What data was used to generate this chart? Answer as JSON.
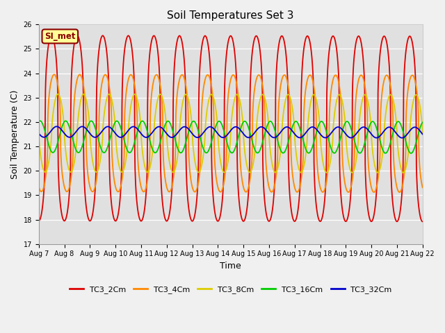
{
  "title": "Soil Temperatures Set 3",
  "xlabel": "Time",
  "ylabel": "Soil Temperature (C)",
  "ylim": [
    17.0,
    26.0
  ],
  "yticks": [
    17.0,
    18.0,
    19.0,
    20.0,
    21.0,
    22.0,
    23.0,
    24.0,
    25.0,
    26.0
  ],
  "xtick_labels": [
    "Aug 7",
    "Aug 8",
    "Aug 9",
    "Aug 10",
    "Aug 11",
    "Aug 12",
    "Aug 13",
    "Aug 14",
    "Aug 15",
    "Aug 16",
    "Aug 17",
    "Aug 18",
    "Aug 19",
    "Aug 20",
    "Aug 21",
    "Aug 22"
  ],
  "annotation_text": "SI_met",
  "bg_color_inner": "#e0e0e0",
  "bg_color_outer": "#f0f0f0",
  "series": [
    {
      "label": "TC3_2Cm",
      "color": "#dd0000",
      "mean": 21.75,
      "amplitude": 3.8,
      "phase_shift": 0.0,
      "peak_power": 3.0
    },
    {
      "label": "TC3_4Cm",
      "color": "#ff8800",
      "mean": 21.55,
      "amplitude": 2.4,
      "phase_shift": 0.1,
      "peak_power": 2.5
    },
    {
      "label": "TC3_8Cm",
      "color": "#ddcc00",
      "mean": 21.55,
      "amplitude": 1.6,
      "phase_shift": 0.25,
      "peak_power": 1.5
    },
    {
      "label": "TC3_16Cm",
      "color": "#00cc00",
      "mean": 21.4,
      "amplitude": 0.65,
      "phase_shift": 0.55,
      "peak_power": 1.0
    },
    {
      "label": "TC3_32Cm",
      "color": "#0000cc",
      "mean": 21.6,
      "amplitude": 0.22,
      "phase_shift": 1.2,
      "peak_power": 1.0
    }
  ],
  "n_days": 15,
  "samples_per_day": 96,
  "legend_colors": [
    "#dd0000",
    "#ff8800",
    "#ddcc00",
    "#00cc00",
    "#0000cc"
  ],
  "legend_labels": [
    "TC3_2Cm",
    "TC3_4Cm",
    "TC3_8Cm",
    "TC3_16Cm",
    "TC3_32Cm"
  ],
  "title_fontsize": 11,
  "axis_label_fontsize": 9,
  "tick_fontsize": 7,
  "linewidth": 1.3
}
